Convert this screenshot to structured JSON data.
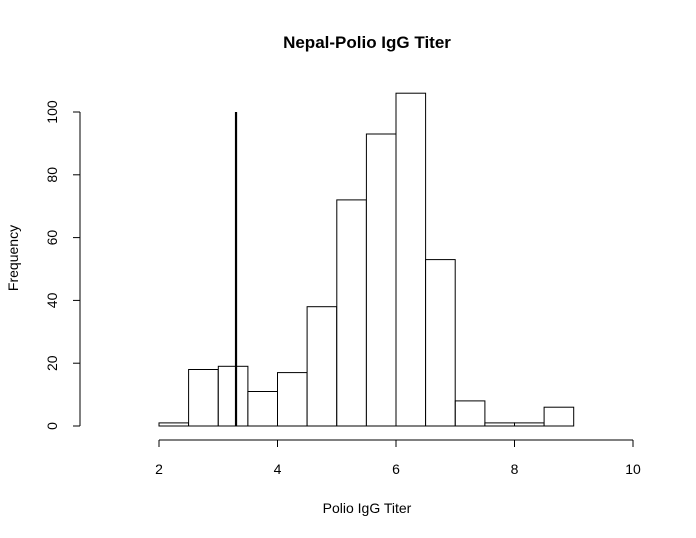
{
  "chart_data": {
    "type": "histogram",
    "title": "Nepal-Polio IgG Titer",
    "xlabel": "Polio IgG Titer",
    "ylabel": "Frequency",
    "xlim": [
      2,
      10
    ],
    "ylim": [
      0,
      100
    ],
    "x_ticks": [
      2,
      4,
      6,
      8,
      10
    ],
    "y_ticks": [
      0,
      20,
      40,
      60,
      80,
      100
    ],
    "bins": [
      {
        "from": 2.0,
        "to": 2.5,
        "count": 1
      },
      {
        "from": 2.5,
        "to": 3.0,
        "count": 18
      },
      {
        "from": 3.0,
        "to": 3.5,
        "count": 19
      },
      {
        "from": 3.5,
        "to": 4.0,
        "count": 11
      },
      {
        "from": 4.0,
        "to": 4.5,
        "count": 17
      },
      {
        "from": 4.5,
        "to": 5.0,
        "count": 38
      },
      {
        "from": 5.0,
        "to": 5.5,
        "count": 72
      },
      {
        "from": 5.5,
        "to": 6.0,
        "count": 93
      },
      {
        "from": 6.0,
        "to": 6.5,
        "count": 106
      },
      {
        "from": 6.5,
        "to": 7.0,
        "count": 53
      },
      {
        "from": 7.0,
        "to": 7.5,
        "count": 8
      },
      {
        "from": 7.5,
        "to": 8.0,
        "count": 1
      },
      {
        "from": 8.0,
        "to": 8.5,
        "count": 1
      },
      {
        "from": 8.5,
        "to": 9.0,
        "count": 6
      }
    ],
    "reference_line": {
      "x": 3.3,
      "y_from": 0,
      "y_to": 100
    }
  }
}
